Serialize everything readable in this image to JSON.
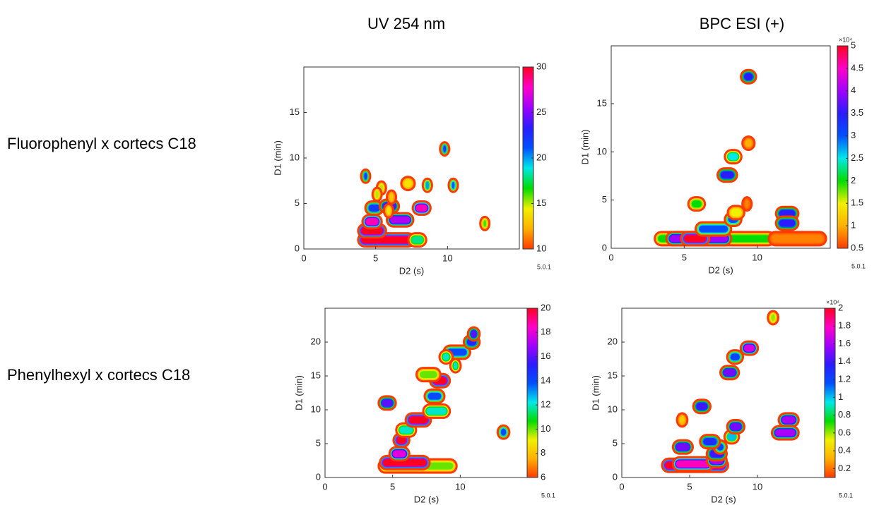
{
  "layout": {
    "column_titles": [
      "UV 254 nm",
      "BPC ESI (+)"
    ],
    "row_labels": [
      "Fluorophenyl x cortecs C18",
      "Phenylhexyl x cortecs C18"
    ]
  },
  "chart_data": [
    {
      "type": "contour",
      "xlabel": "D2 (s)",
      "ylabel": "D1 (min)",
      "xlim": [
        0,
        15
      ],
      "ylim": [
        0,
        20
      ],
      "xticks": [
        0,
        5,
        10
      ],
      "yticks": [
        0,
        5,
        10,
        15
      ],
      "clim": [
        10,
        30
      ],
      "cticks": [
        10,
        15,
        20,
        25,
        30
      ],
      "version": "5.0.1",
      "colormap": [
        "#ff3a00",
        "#ffb000",
        "#f0f000",
        "#00dc00",
        "#00e8e8",
        "#0050ff",
        "#2a1cff",
        "#a000ff",
        "#ff00c8",
        "#ff0020"
      ],
      "peaks": {
        "x0": [
          4.0,
          7.5,
          4.0,
          4.3,
          4.5,
          5.5,
          6.0,
          7.8,
          4.2,
          9.7,
          10.3,
          8.5,
          7.0,
          5.3,
          12.5,
          6.0,
          5.8,
          5.0
        ],
        "x1": [
          7.5,
          8.3,
          5.5,
          5.2,
          5.3,
          6.4,
          7.4,
          8.6,
          4.4,
          9.9,
          10.5,
          8.7,
          7.5,
          5.5,
          12.6,
          6.2,
          6.0,
          5.1
        ],
        "y": [
          1,
          1,
          2,
          3,
          4.5,
          4.7,
          3.2,
          4.5,
          8,
          11,
          7,
          7,
          7.2,
          6.7,
          2.8,
          5.7,
          4.2,
          6.0
        ],
        "values": [
          30,
          18,
          30,
          28,
          22,
          24,
          26,
          28,
          22,
          22,
          21,
          20,
          14,
          15,
          16,
          13,
          14,
          15
        ]
      }
    },
    {
      "type": "contour",
      "xlabel": "D2 (s)",
      "ylabel": "D1 (min)",
      "xlim": [
        0,
        15
      ],
      "ylim": [
        0,
        21
      ],
      "xticks": [
        0,
        5,
        10
      ],
      "yticks": [
        0,
        5,
        10,
        15
      ],
      "clim": [
        0.5,
        5
      ],
      "cticks": [
        0.5,
        1,
        1.5,
        2,
        2.5,
        3,
        3.5,
        4,
        4.5,
        5
      ],
      "colorbar_label": "×10⁴",
      "version": "5.0.1",
      "colormap": [
        "#ff3a00",
        "#ffb000",
        "#f0f000",
        "#00dc00",
        "#00e8e8",
        "#0050ff",
        "#2a1cff",
        "#a000ff",
        "#ff00c8",
        "#ff0020"
      ],
      "peaks": {
        "x0": [
          3.2,
          4.0,
          5.0,
          6.0,
          11.0,
          11.5,
          11.5,
          8.0,
          8.2,
          5.5,
          7.5,
          8.0,
          9.2,
          9.1,
          9.2
        ],
        "x1": [
          11.0,
          8.0,
          6.5,
          8.0,
          14.5,
          12.6,
          12.6,
          8.7,
          8.9,
          6.2,
          8.4,
          8.7,
          9.6,
          9.7,
          9.4
        ],
        "y": [
          1,
          1,
          1,
          2,
          1,
          3.6,
          2.6,
          3,
          3.7,
          4.6,
          7.6,
          9.5,
          10.9,
          17.8,
          4.6
        ],
        "values": [
          2,
          4,
          5,
          3,
          0.8,
          3.5,
          3.5,
          3,
          1.5,
          2,
          3.5,
          2.5,
          1,
          3.5,
          0.8
        ]
      }
    },
    {
      "type": "contour",
      "xlabel": "D2 (s)",
      "ylabel": "D1 (min)",
      "xlim": [
        0,
        15
      ],
      "ylim": [
        0,
        25
      ],
      "xticks": [
        0,
        5,
        10
      ],
      "yticks": [
        0,
        5,
        10,
        15,
        20
      ],
      "clim": [
        6,
        20
      ],
      "cticks": [
        6,
        8,
        10,
        12,
        14,
        16,
        18,
        20
      ],
      "version": "5.0.1",
      "colormap": [
        "#ff3a00",
        "#ffb000",
        "#f0f000",
        "#00dc00",
        "#00e8e8",
        "#0050ff",
        "#2a1cff",
        "#a000ff",
        "#ff00c8",
        "#ff0020"
      ],
      "peaks": {
        "x0": [
          4.2,
          4.3,
          5.0,
          5.3,
          5.5,
          6.2,
          4.2,
          7.5,
          8.0,
          7.6,
          9.0,
          10.5,
          10.8,
          13.0,
          8.7,
          7.0,
          9.5
        ],
        "x1": [
          9.5,
          7.5,
          6.0,
          6.0,
          6.5,
          7.6,
          5.0,
          9.0,
          9.0,
          8.6,
          10.5,
          11.2,
          11.2,
          13.4,
          9.2,
          8.3,
          9.8
        ],
        "y": [
          1.7,
          2.2,
          3.5,
          5.5,
          7,
          8.5,
          11,
          9.8,
          14.3,
          12,
          18.5,
          20,
          21.2,
          6.7,
          17.8,
          15.2,
          16.5
        ],
        "values": [
          10,
          20,
          18,
          20,
          12,
          20,
          16,
          12,
          20,
          14,
          14,
          15,
          16,
          14,
          12,
          10,
          12
        ]
      }
    },
    {
      "type": "contour",
      "xlabel": "D2 (s)",
      "ylabel": "D1 (min)",
      "xlim": [
        0,
        15
      ],
      "ylim": [
        0,
        25
      ],
      "xticks": [
        0,
        5,
        10
      ],
      "yticks": [
        0,
        5,
        10,
        15,
        20
      ],
      "clim": [
        0.1,
        2
      ],
      "cticks": [
        0.2,
        0.4,
        0.6,
        0.8,
        1,
        1.2,
        1.4,
        1.6,
        1.8,
        2
      ],
      "colorbar_label": "×10⁴",
      "version": "5.0.1",
      "colormap": [
        "#ff3a00",
        "#ffb000",
        "#f0f000",
        "#00dc00",
        "#00e8e8",
        "#0050ff",
        "#2a1cff",
        "#a000ff",
        "#ff00c8",
        "#ff0020"
      ],
      "peaks": {
        "x0": [
          3.2,
          4.0,
          6.5,
          6.5,
          7.0,
          7.8,
          8.0,
          4.0,
          5.5,
          6.0,
          7.5,
          8.0,
          9.0,
          11.8,
          11.3,
          11.0,
          4.3
        ],
        "x1": [
          7.6,
          6.5,
          7.5,
          7.5,
          7.5,
          8.4,
          8.8,
          5.0,
          6.3,
          7.0,
          8.4,
          8.7,
          9.8,
          12.8,
          12.8,
          11.3,
          4.6
        ],
        "y": [
          1.8,
          2,
          2.5,
          3.5,
          4.5,
          6,
          7.5,
          4.5,
          10.5,
          5.3,
          15.5,
          17.8,
          19.1,
          8.5,
          6.6,
          23.6,
          8.5
        ],
        "values": [
          2,
          1.8,
          1.6,
          1.4,
          1.2,
          1,
          1.5,
          1.5,
          1.4,
          1.3,
          1.5,
          1.2,
          1.7,
          1.6,
          1.6,
          0.6,
          0.4
        ]
      }
    }
  ]
}
